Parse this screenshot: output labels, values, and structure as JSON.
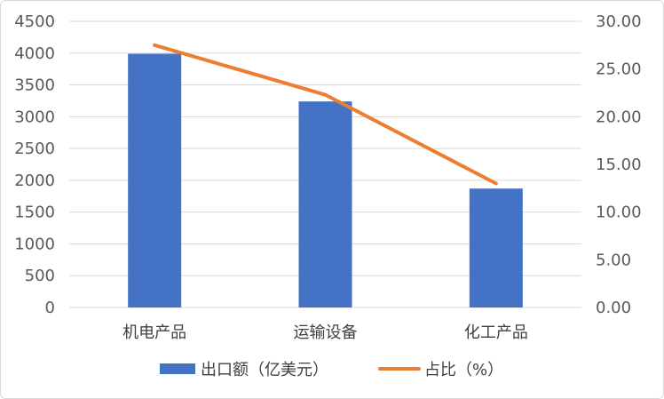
{
  "chart_data": {
    "type": "bar+line",
    "categories": [
      "机电产品",
      "运输设备",
      "化工产品"
    ],
    "series": [
      {
        "name": "出口额（亿美元）",
        "type": "bar",
        "axis": "left",
        "color": "#4472c4",
        "values": [
          3990,
          3240,
          1870
        ]
      },
      {
        "name": "占比（%）",
        "type": "line",
        "axis": "right",
        "color": "#ed7d31",
        "values": [
          27.5,
          22.3,
          13.0
        ]
      }
    ],
    "y_left": {
      "min": 0,
      "max": 4500,
      "step": 500,
      "ticks": [
        "0",
        "500",
        "1000",
        "1500",
        "2000",
        "2500",
        "3000",
        "3500",
        "4000",
        "4500"
      ]
    },
    "y_right": {
      "min": 0,
      "max": 30,
      "step": 5,
      "ticks": [
        "0.00",
        "5.00",
        "10.00",
        "15.00",
        "20.00",
        "25.00",
        "30.00"
      ]
    },
    "grid": true,
    "legend_position": "bottom"
  }
}
